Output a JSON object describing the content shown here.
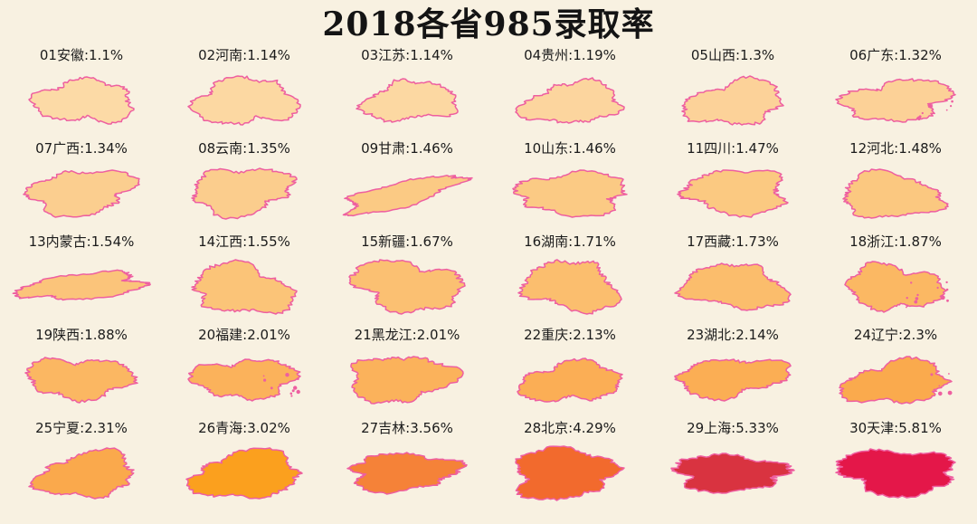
{
  "page": {
    "background": "#F8F1E1",
    "title": "2018各省985录取率",
    "title_color": "#141414",
    "outline_color": "#EE5FA0"
  },
  "chart_data": {
    "type": "heatmap",
    "subtype": "small-multiple province silhouettes colored by admission rate",
    "title": "2018各省985录取率",
    "unit": "%",
    "grid": {
      "columns": 6,
      "rows": 5
    },
    "legend_position": "none",
    "color_scale_note": "light peach = low rate, deep red = high rate; pink map outlines",
    "categories": [
      "安徽",
      "河南",
      "江苏",
      "贵州",
      "山西",
      "广东",
      "广西",
      "云南",
      "甘肃",
      "山东",
      "四川",
      "河北",
      "内蒙古",
      "江西",
      "新疆",
      "湖南",
      "西藏",
      "浙江",
      "陕西",
      "福建",
      "黑龙江",
      "重庆",
      "湖北",
      "辽宁",
      "宁夏",
      "青海",
      "吉林",
      "北京",
      "上海",
      "天津"
    ],
    "values": [
      1.1,
      1.14,
      1.14,
      1.19,
      1.3,
      1.32,
      1.34,
      1.35,
      1.46,
      1.46,
      1.47,
      1.48,
      1.54,
      1.55,
      1.67,
      1.71,
      1.73,
      1.87,
      1.88,
      2.01,
      2.01,
      2.13,
      2.14,
      2.3,
      2.31,
      3.02,
      3.56,
      4.29,
      5.33,
      5.81
    ],
    "provinces": [
      {
        "rank": "01",
        "name": "安徽",
        "rate": 1.1,
        "label": "01安徽:1.1%",
        "fill": "#FCDAA6"
      },
      {
        "rank": "02",
        "name": "河南",
        "rate": 1.14,
        "label": "02河南:1.14%",
        "fill": "#FCD8A2"
      },
      {
        "rank": "03",
        "name": "江苏",
        "rate": 1.14,
        "label": "03江苏:1.14%",
        "fill": "#FCD8A2"
      },
      {
        "rank": "04",
        "name": "贵州",
        "rate": 1.19,
        "label": "04贵州:1.19%",
        "fill": "#FCD59E"
      },
      {
        "rank": "05",
        "name": "山西",
        "rate": 1.3,
        "label": "05山西:1.3%",
        "fill": "#FCD299"
      },
      {
        "rank": "06",
        "name": "广东",
        "rate": 1.32,
        "label": "06广东:1.32%",
        "fill": "#FCD197"
      },
      {
        "rank": "07",
        "name": "广西",
        "rate": 1.34,
        "label": "07广西:1.34%",
        "fill": "#FBCE8F"
      },
      {
        "rank": "08",
        "name": "云南",
        "rate": 1.35,
        "label": "08云南:1.35%",
        "fill": "#FBCD8D"
      },
      {
        "rank": "09",
        "name": "甘肃",
        "rate": 1.46,
        "label": "09甘肃:1.46%",
        "fill": "#FBCA84"
      },
      {
        "rank": "10",
        "name": "山东",
        "rate": 1.46,
        "label": "10山东:1.46%",
        "fill": "#FBCA84"
      },
      {
        "rank": "11",
        "name": "四川",
        "rate": 1.47,
        "label": "11四川:1.47%",
        "fill": "#FBC981"
      },
      {
        "rank": "12",
        "name": "河北",
        "rate": 1.48,
        "label": "12河北:1.48%",
        "fill": "#FBC880"
      },
      {
        "rank": "13",
        "name": "内蒙古",
        "rate": 1.54,
        "label": "13内蒙古:1.54%",
        "fill": "#FBC47A"
      },
      {
        "rank": "14",
        "name": "江西",
        "rate": 1.55,
        "label": "14江西:1.55%",
        "fill": "#FBC478"
      },
      {
        "rank": "15",
        "name": "新疆",
        "rate": 1.67,
        "label": "15新疆:1.67%",
        "fill": "#FBC072"
      },
      {
        "rank": "16",
        "name": "湖南",
        "rate": 1.71,
        "label": "16湖南:1.71%",
        "fill": "#FBBE6E"
      },
      {
        "rank": "17",
        "name": "西藏",
        "rate": 1.73,
        "label": "17西藏:1.73%",
        "fill": "#FBBD6C"
      },
      {
        "rank": "18",
        "name": "浙江",
        "rate": 1.87,
        "label": "18浙江:1.87%",
        "fill": "#FBB863"
      },
      {
        "rank": "19",
        "name": "陕西",
        "rate": 1.88,
        "label": "19陕西:1.88%",
        "fill": "#FBB762"
      },
      {
        "rank": "20",
        "name": "福建",
        "rate": 2.01,
        "label": "20福建:2.01%",
        "fill": "#FBB25B"
      },
      {
        "rank": "21",
        "name": "黑龙江",
        "rate": 2.01,
        "label": "21黑龙江:2.01%",
        "fill": "#FBB25B"
      },
      {
        "rank": "22",
        "name": "重庆",
        "rate": 2.13,
        "label": "22重庆:2.13%",
        "fill": "#FBAE55"
      },
      {
        "rank": "23",
        "name": "湖北",
        "rate": 2.14,
        "label": "23湖北:2.14%",
        "fill": "#FBAE54"
      },
      {
        "rank": "24",
        "name": "辽宁",
        "rate": 2.3,
        "label": "24辽宁:2.3%",
        "fill": "#FAAA4D"
      },
      {
        "rank": "25",
        "name": "宁夏",
        "rate": 2.31,
        "label": "25宁夏:2.31%",
        "fill": "#FAA94C"
      },
      {
        "rank": "26",
        "name": "青海",
        "rate": 3.02,
        "label": "26青海:3.02%",
        "fill": "#FBA01E"
      },
      {
        "rank": "27",
        "name": "吉林",
        "rate": 3.56,
        "label": "27吉林:3.56%",
        "fill": "#F58238"
      },
      {
        "rank": "28",
        "name": "北京",
        "rate": 4.29,
        "label": "28北京:4.29%",
        "fill": "#F26A2D"
      },
      {
        "rank": "29",
        "name": "上海",
        "rate": 5.33,
        "label": "29上海:5.33%",
        "fill": "#D93340"
      },
      {
        "rank": "30",
        "name": "天津",
        "rate": 5.81,
        "label": "30天津:5.81%",
        "fill": "#E41749"
      }
    ]
  }
}
